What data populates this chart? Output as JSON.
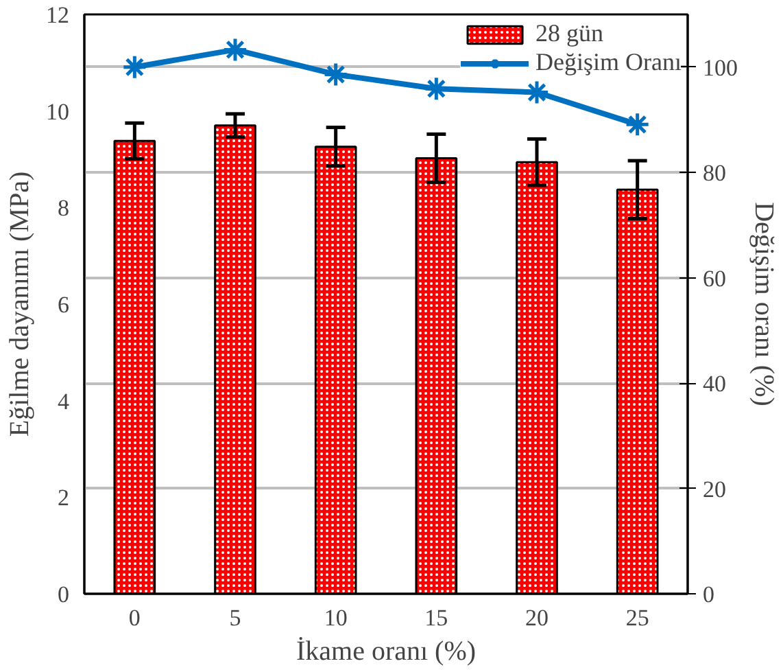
{
  "chart_data": {
    "type": "bar",
    "xlabel": "İkame oranı (%)",
    "ylabel": "Eğilme dayanımı (MPa)",
    "y2label": "Değişim oranı (%)",
    "categories": [
      "0",
      "5",
      "10",
      "15",
      "20",
      "25"
    ],
    "series": [
      {
        "name": "28 gün",
        "color": "#ff0000",
        "values": [
          9.38,
          9.7,
          9.26,
          9.02,
          8.94,
          8.37
        ],
        "errors": [
          0.37,
          0.24,
          0.4,
          0.5,
          0.48,
          0.6
        ]
      },
      {
        "name": "Değişim Oranı",
        "type": "line",
        "axis": "y2",
        "color": "#0070c0",
        "marker": "cross",
        "values": [
          100,
          103.3,
          98.6,
          95.9,
          95.2,
          89.1
        ]
      }
    ],
    "ylim": [
      0,
      12
    ],
    "yticks": [
      0,
      2,
      4,
      6,
      8,
      10,
      12
    ],
    "y2lim": [
      0,
      110
    ],
    "y2ticks": [
      0,
      20,
      40,
      60,
      80,
      100
    ],
    "grid": "y",
    "legend": "top right"
  }
}
